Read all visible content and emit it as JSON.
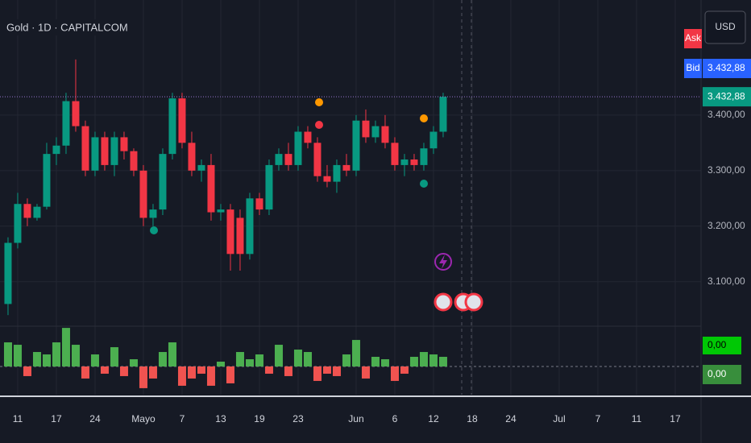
{
  "chart_data": {
    "type": "candlestick",
    "title": "Gold · 1D · CAPITALCOM",
    "currency": "USD",
    "ask_label": "Ask",
    "bid_label": "Bid",
    "last_price": 3432.88,
    "last_price_label": "3.432,88",
    "x": [
      0,
      1,
      2,
      3,
      4,
      5,
      6,
      7,
      8,
      9,
      10,
      11,
      12,
      13,
      14,
      15,
      16,
      17,
      18,
      19,
      20,
      21,
      22,
      23,
      24,
      25,
      26,
      27,
      28,
      29,
      30,
      31,
      32,
      33,
      34,
      35,
      36,
      37,
      38,
      39,
      40,
      41,
      42,
      43,
      44,
      45
    ],
    "open": [
      3060,
      3170,
      3240,
      3215,
      3235,
      3330,
      3345,
      3425,
      3380,
      3300,
      3360,
      3310,
      3360,
      3335,
      3300,
      3215,
      3230,
      3330,
      3430,
      3350,
      3300,
      3310,
      3225,
      3230,
      3215,
      3150,
      3250,
      3230,
      3310,
      3330,
      3310,
      3370,
      3350,
      3290,
      3280,
      3310,
      3300,
      3390,
      3360,
      3380,
      3350,
      3310,
      3320,
      3310,
      3340,
      3370
    ],
    "high": [
      3180,
      3260,
      3250,
      3240,
      3350,
      3360,
      3440,
      3500,
      3390,
      3370,
      3370,
      3370,
      3370,
      3340,
      3310,
      3240,
      3340,
      3440,
      3440,
      3370,
      3320,
      3330,
      3240,
      3240,
      3230,
      3260,
      3260,
      3320,
      3340,
      3350,
      3380,
      3380,
      3360,
      3310,
      3320,
      3330,
      3400,
      3410,
      3390,
      3400,
      3360,
      3330,
      3330,
      3350,
      3380,
      3440
    ],
    "low": [
      3040,
      3160,
      3200,
      3210,
      3230,
      3310,
      3330,
      3370,
      3290,
      3290,
      3300,
      3290,
      3320,
      3290,
      3200,
      3200,
      3220,
      3320,
      3340,
      3290,
      3280,
      3210,
      3210,
      3120,
      3120,
      3140,
      3220,
      3220,
      3300,
      3300,
      3300,
      3340,
      3280,
      3270,
      3260,
      3290,
      3290,
      3350,
      3350,
      3340,
      3300,
      3290,
      3300,
      3300,
      3330,
      3360
    ],
    "close": [
      3170,
      3240,
      3215,
      3235,
      3330,
      3345,
      3425,
      3380,
      3300,
      3360,
      3310,
      3360,
      3335,
      3300,
      3215,
      3230,
      3330,
      3430,
      3350,
      3300,
      3310,
      3225,
      3230,
      3150,
      3150,
      3250,
      3230,
      3310,
      3330,
      3310,
      3370,
      3350,
      3290,
      3280,
      3310,
      3300,
      3390,
      3360,
      3380,
      3350,
      3310,
      3320,
      3310,
      3340,
      3370,
      3432.88
    ],
    "up_color": "#089981",
    "down_color": "#f23645",
    "ylim": [
      3020,
      3607
    ],
    "yticks": [
      {
        "value": 3100,
        "label": "3.100,00"
      },
      {
        "value": 3200,
        "label": "3.200,00"
      },
      {
        "value": 3300,
        "label": "3.300,00"
      },
      {
        "value": 3400,
        "label": "3.400,00"
      }
    ],
    "xlim": [
      -0.83,
      71.67
    ],
    "xticks": [
      {
        "value": 1,
        "label": "11"
      },
      {
        "value": 5,
        "label": "17"
      },
      {
        "value": 9,
        "label": "24"
      },
      {
        "value": 14,
        "label": "Mayo"
      },
      {
        "value": 18,
        "label": "7"
      },
      {
        "value": 22,
        "label": "13"
      },
      {
        "value": 26,
        "label": "19"
      },
      {
        "value": 30,
        "label": "23"
      },
      {
        "value": 36,
        "label": "Jun"
      },
      {
        "value": 40,
        "label": "6"
      },
      {
        "value": 44,
        "label": "12"
      },
      {
        "value": 48,
        "label": "18"
      },
      {
        "value": 52,
        "label": "24"
      },
      {
        "value": 57,
        "label": "Jul"
      },
      {
        "value": 61,
        "label": "7"
      },
      {
        "value": 65,
        "label": "11"
      },
      {
        "value": 69,
        "label": "17"
      }
    ],
    "grid": true,
    "indicator": {
      "type": "histogram",
      "values": [
        1,
        0.9,
        -0.4,
        0.6,
        0.5,
        1,
        1.6,
        0.9,
        -0.5,
        0.5,
        -0.3,
        0.8,
        -0.4,
        0.3,
        -0.9,
        -0.5,
        0.6,
        1,
        -0.8,
        -0.5,
        -0.3,
        -0.8,
        0.2,
        -0.7,
        0.6,
        0.3,
        0.5,
        -0.3,
        0.9,
        -0.4,
        0.7,
        0.6,
        -0.6,
        -0.3,
        -0.4,
        0.5,
        1.1,
        -0.5,
        0.4,
        0.3,
        -0.6,
        -0.3,
        0.4,
        0.6,
        0.5,
        0.4
      ],
      "pos_color": "#4caf50",
      "neg_color": "#f05350",
      "ylim": [
        -1.17,
        1.67
      ],
      "yticks": [
        {
          "value": 0,
          "label": "0,00"
        }
      ]
    }
  }
}
